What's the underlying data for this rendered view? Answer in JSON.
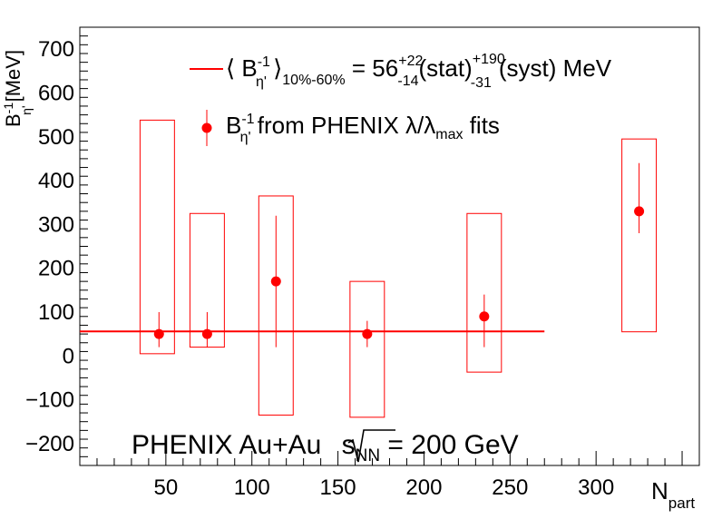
{
  "chart_data": {
    "type": "scatter",
    "title": "",
    "xlabel": "N",
    "xlabel_sub": "part",
    "ylabel": "B",
    "ylabel_sup": "-1",
    "ylabel_sub": "η'",
    "ylabel_unit": "[MeV]",
    "xlim": [
      0,
      360
    ],
    "ylim": [
      -250,
      750
    ],
    "x_ticks": [
      50,
      100,
      150,
      200,
      250,
      300
    ],
    "y_ticks": [
      -200,
      -100,
      0,
      100,
      200,
      300,
      400,
      500,
      600,
      700
    ],
    "y_tick_labels": [
      "−200",
      "−100",
      "0",
      "100",
      "200",
      "300",
      "400",
      "500",
      "600",
      "700"
    ],
    "grid": false,
    "legend_position": "top",
    "accent_color": "#ff0000",
    "points": [
      {
        "x": 46,
        "y": 50,
        "stat_low": 20,
        "stat_high": 100,
        "syst_low": 5,
        "syst_high": 538,
        "syst_x_low": 35,
        "syst_x_high": 55
      },
      {
        "x": 74,
        "y": 50,
        "stat_low": 20,
        "stat_high": 100,
        "syst_low": 20,
        "syst_high": 325,
        "syst_x_low": 64,
        "syst_x_high": 84
      },
      {
        "x": 114,
        "y": 170,
        "stat_low": 20,
        "stat_high": 320,
        "syst_low": -135,
        "syst_high": 365,
        "syst_x_low": 104,
        "syst_x_high": 124
      },
      {
        "x": 167,
        "y": 50,
        "stat_low": 20,
        "stat_high": 80,
        "syst_low": -140,
        "syst_high": 170,
        "syst_x_low": 157,
        "syst_x_high": 177
      },
      {
        "x": 235,
        "y": 90,
        "stat_low": 20,
        "stat_high": 140,
        "syst_low": -37,
        "syst_high": 325,
        "syst_x_low": 225,
        "syst_x_high": 245
      },
      {
        "x": 325,
        "y": 330,
        "stat_low": 280,
        "stat_high": 440,
        "syst_low": 55,
        "syst_high": 495,
        "syst_x_low": 315,
        "syst_x_high": 335
      }
    ],
    "average_line": {
      "y": 56,
      "x_from": 0,
      "x_to": 270
    }
  },
  "legend": {
    "line_entry": {
      "open": "⟨ B",
      "sup": "-1",
      "sub": "η'",
      "close": " ⟩",
      "range": "10%-60%",
      "value": " = 56",
      "stat_up": "+22",
      "stat_down": "-14",
      "stat_label": "(stat)",
      "syst_up": "+190",
      "syst_down": "-31",
      "syst_label": "(syst) MeV"
    },
    "marker_entry": {
      "b": "B",
      "sup": "-1",
      "sub": "η'",
      "text1": " from PHENIX ",
      "lambda": "λ/λ",
      "max": "max",
      "text2": " fits"
    }
  },
  "annotation": {
    "text": "PHENIX Au+Au ",
    "sqrt_s": "s",
    "sub": "NN",
    "rest": " = 200 GeV"
  }
}
